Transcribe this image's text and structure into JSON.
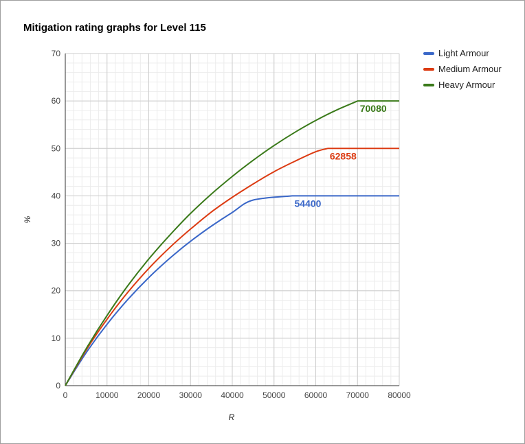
{
  "chart_data": {
    "type": "line",
    "title": "Mitigation rating graphs for Level 115",
    "xlabel": "R",
    "ylabel": "%",
    "xlim": [
      0,
      80000
    ],
    "ylim": [
      0,
      70
    ],
    "x_ticks": [
      0,
      10000,
      20000,
      30000,
      40000,
      50000,
      60000,
      70000,
      80000
    ],
    "y_ticks": [
      0,
      10,
      20,
      30,
      40,
      50,
      60,
      70
    ],
    "grid": true,
    "legend_position": "right",
    "series": [
      {
        "name": "Light Armour",
        "color": "#3a67c8",
        "x": [
          0,
          5000,
          10000,
          15000,
          20000,
          25000,
          30000,
          35000,
          40000,
          45000,
          50000,
          54400,
          60000,
          70000,
          80000
        ],
        "values": [
          0,
          6.94,
          12.95,
          18.18,
          22.78,
          26.83,
          30.43,
          33.63,
          36.51,
          39.12,
          41.46,
          40,
          40,
          40,
          40
        ],
        "cap_x": 54400,
        "cap_label": "54400"
      },
      {
        "name": "Medium Armour",
        "color": "#dc3b12",
        "x": [
          0,
          5000,
          10000,
          15000,
          20000,
          25000,
          30000,
          35000,
          40000,
          45000,
          50000,
          55000,
          60000,
          62858,
          70000,
          80000
        ],
        "values": [
          0,
          7.5,
          14.0,
          19.7,
          24.7,
          29.1,
          33.0,
          36.6,
          39.7,
          42.5,
          45.1,
          47.3,
          49.3,
          50,
          50,
          50
        ],
        "cap_x": 62858,
        "cap_label": "62858"
      },
      {
        "name": "Heavy Armour",
        "color": "#3a7a1a",
        "x": [
          0,
          5000,
          10000,
          15000,
          20000,
          25000,
          30000,
          35000,
          40000,
          45000,
          50000,
          55000,
          60000,
          65000,
          70080,
          80000
        ],
        "values": [
          0,
          7.8,
          14.8,
          21.1,
          26.7,
          31.7,
          36.3,
          40.4,
          44.1,
          47.5,
          50.6,
          53.4,
          55.9,
          58.1,
          60,
          60
        ],
        "cap_x": 70080,
        "cap_label": "70080"
      }
    ]
  }
}
